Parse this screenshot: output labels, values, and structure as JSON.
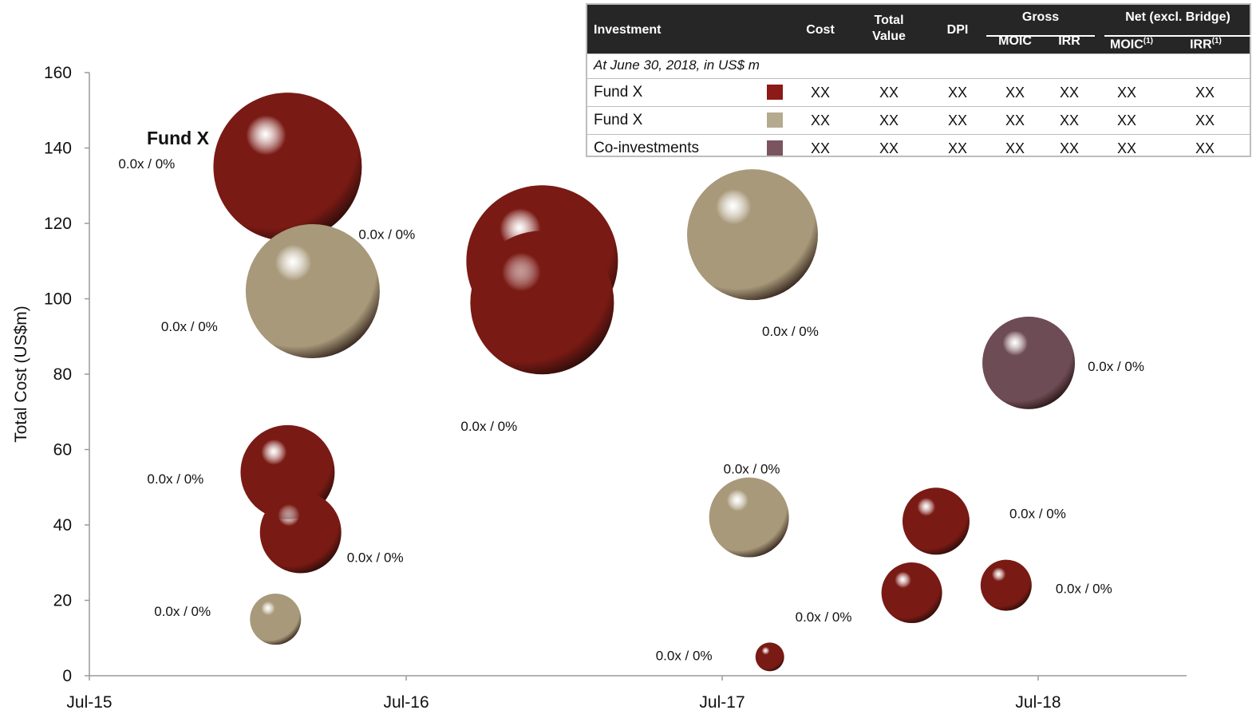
{
  "chart_data": {
    "type": "scatter",
    "subtype": "bubble",
    "ylabel": "Total Cost (US$m)",
    "xlabel": "",
    "ylim": [
      0,
      160
    ],
    "yticks": [
      0,
      20,
      40,
      60,
      80,
      100,
      120,
      140,
      160
    ],
    "xlim": [
      "2015-07-01",
      "2018-11-15"
    ],
    "xticks": [
      {
        "date": "2015-07-01",
        "label": "Jul-15"
      },
      {
        "date": "2016-07-01",
        "label": "Jul-16"
      },
      {
        "date": "2017-07-01",
        "label": "Jul-17"
      },
      {
        "date": "2018-07-01",
        "label": "Jul-18"
      }
    ],
    "grid": false,
    "series": [
      {
        "fund": "Fund X (red)",
        "color": "#7a1a14",
        "points": [
          {
            "x": "2016-02-15",
            "y": 135,
            "label": "0.0x / 0%"
          },
          {
            "x": "2016-02-15",
            "y": 54,
            "label": "0.0x / 0%"
          },
          {
            "x": "2016-03-01",
            "y": 38,
            "label": "0.0x / 0%"
          },
          {
            "x": "2016-12-05",
            "y": 110,
            "label": "0.0x / 0%"
          },
          {
            "x": "2016-12-05",
            "y": 99,
            "label": "0.0x / 0%"
          },
          {
            "x": "2017-08-25",
            "y": 5,
            "label": "0.0x / 0%"
          },
          {
            "x": "2018-02-05",
            "y": 22,
            "label": "0.0x / 0%"
          },
          {
            "x": "2018-03-05",
            "y": 41,
            "label": "0.0x / 0%"
          },
          {
            "x": "2018-05-25",
            "y": 24,
            "label": "0.0x / 0%"
          }
        ]
      },
      {
        "fund": "Fund X (tan)",
        "color": "#a8997a",
        "points": [
          {
            "x": "2016-03-15",
            "y": 102,
            "label": "0.0x / 0%"
          },
          {
            "x": "2016-02-01",
            "y": 15,
            "label": "0.0x / 0%"
          },
          {
            "x": "2017-08-05",
            "y": 117,
            "label": "0.0x / 0%"
          },
          {
            "x": "2017-08-01",
            "y": 42,
            "label": "0.0x / 0%"
          }
        ]
      },
      {
        "fund": "Co-investments",
        "color": "#6e4c55",
        "points": [
          {
            "x": "2018-06-20",
            "y": 83,
            "label": "0.0x / 0%"
          }
        ]
      }
    ],
    "annotations": [
      "Fund X"
    ]
  },
  "table": {
    "headers": {
      "investment": "Investment",
      "cost": "Cost",
      "total_value": "Total Value",
      "dpi": "DPI",
      "gross": "Gross",
      "net": "Net (excl. Bridge)",
      "gross_moic": "MOIC",
      "gross_irr": "IRR",
      "net_moic": "MOIC",
      "net_irr": "IRR",
      "footnote": "(1)"
    },
    "subtitle": "At June 30, 2018, in US$ m",
    "rows": [
      {
        "name": "Fund X",
        "color": "#8b1a18",
        "values": [
          "XX",
          "XX",
          "XX",
          "XX",
          "XX",
          "XX",
          "XX"
        ]
      },
      {
        "name": "Fund X",
        "color": "#b5aa90",
        "values": [
          "XX",
          "XX",
          "XX",
          "XX",
          "XX",
          "XX",
          "XX"
        ]
      },
      {
        "name": "Co-investments",
        "color": "#7a5560",
        "values": [
          "XX",
          "XX",
          "XX",
          "XX",
          "XX",
          "XX",
          "XX"
        ]
      }
    ]
  }
}
